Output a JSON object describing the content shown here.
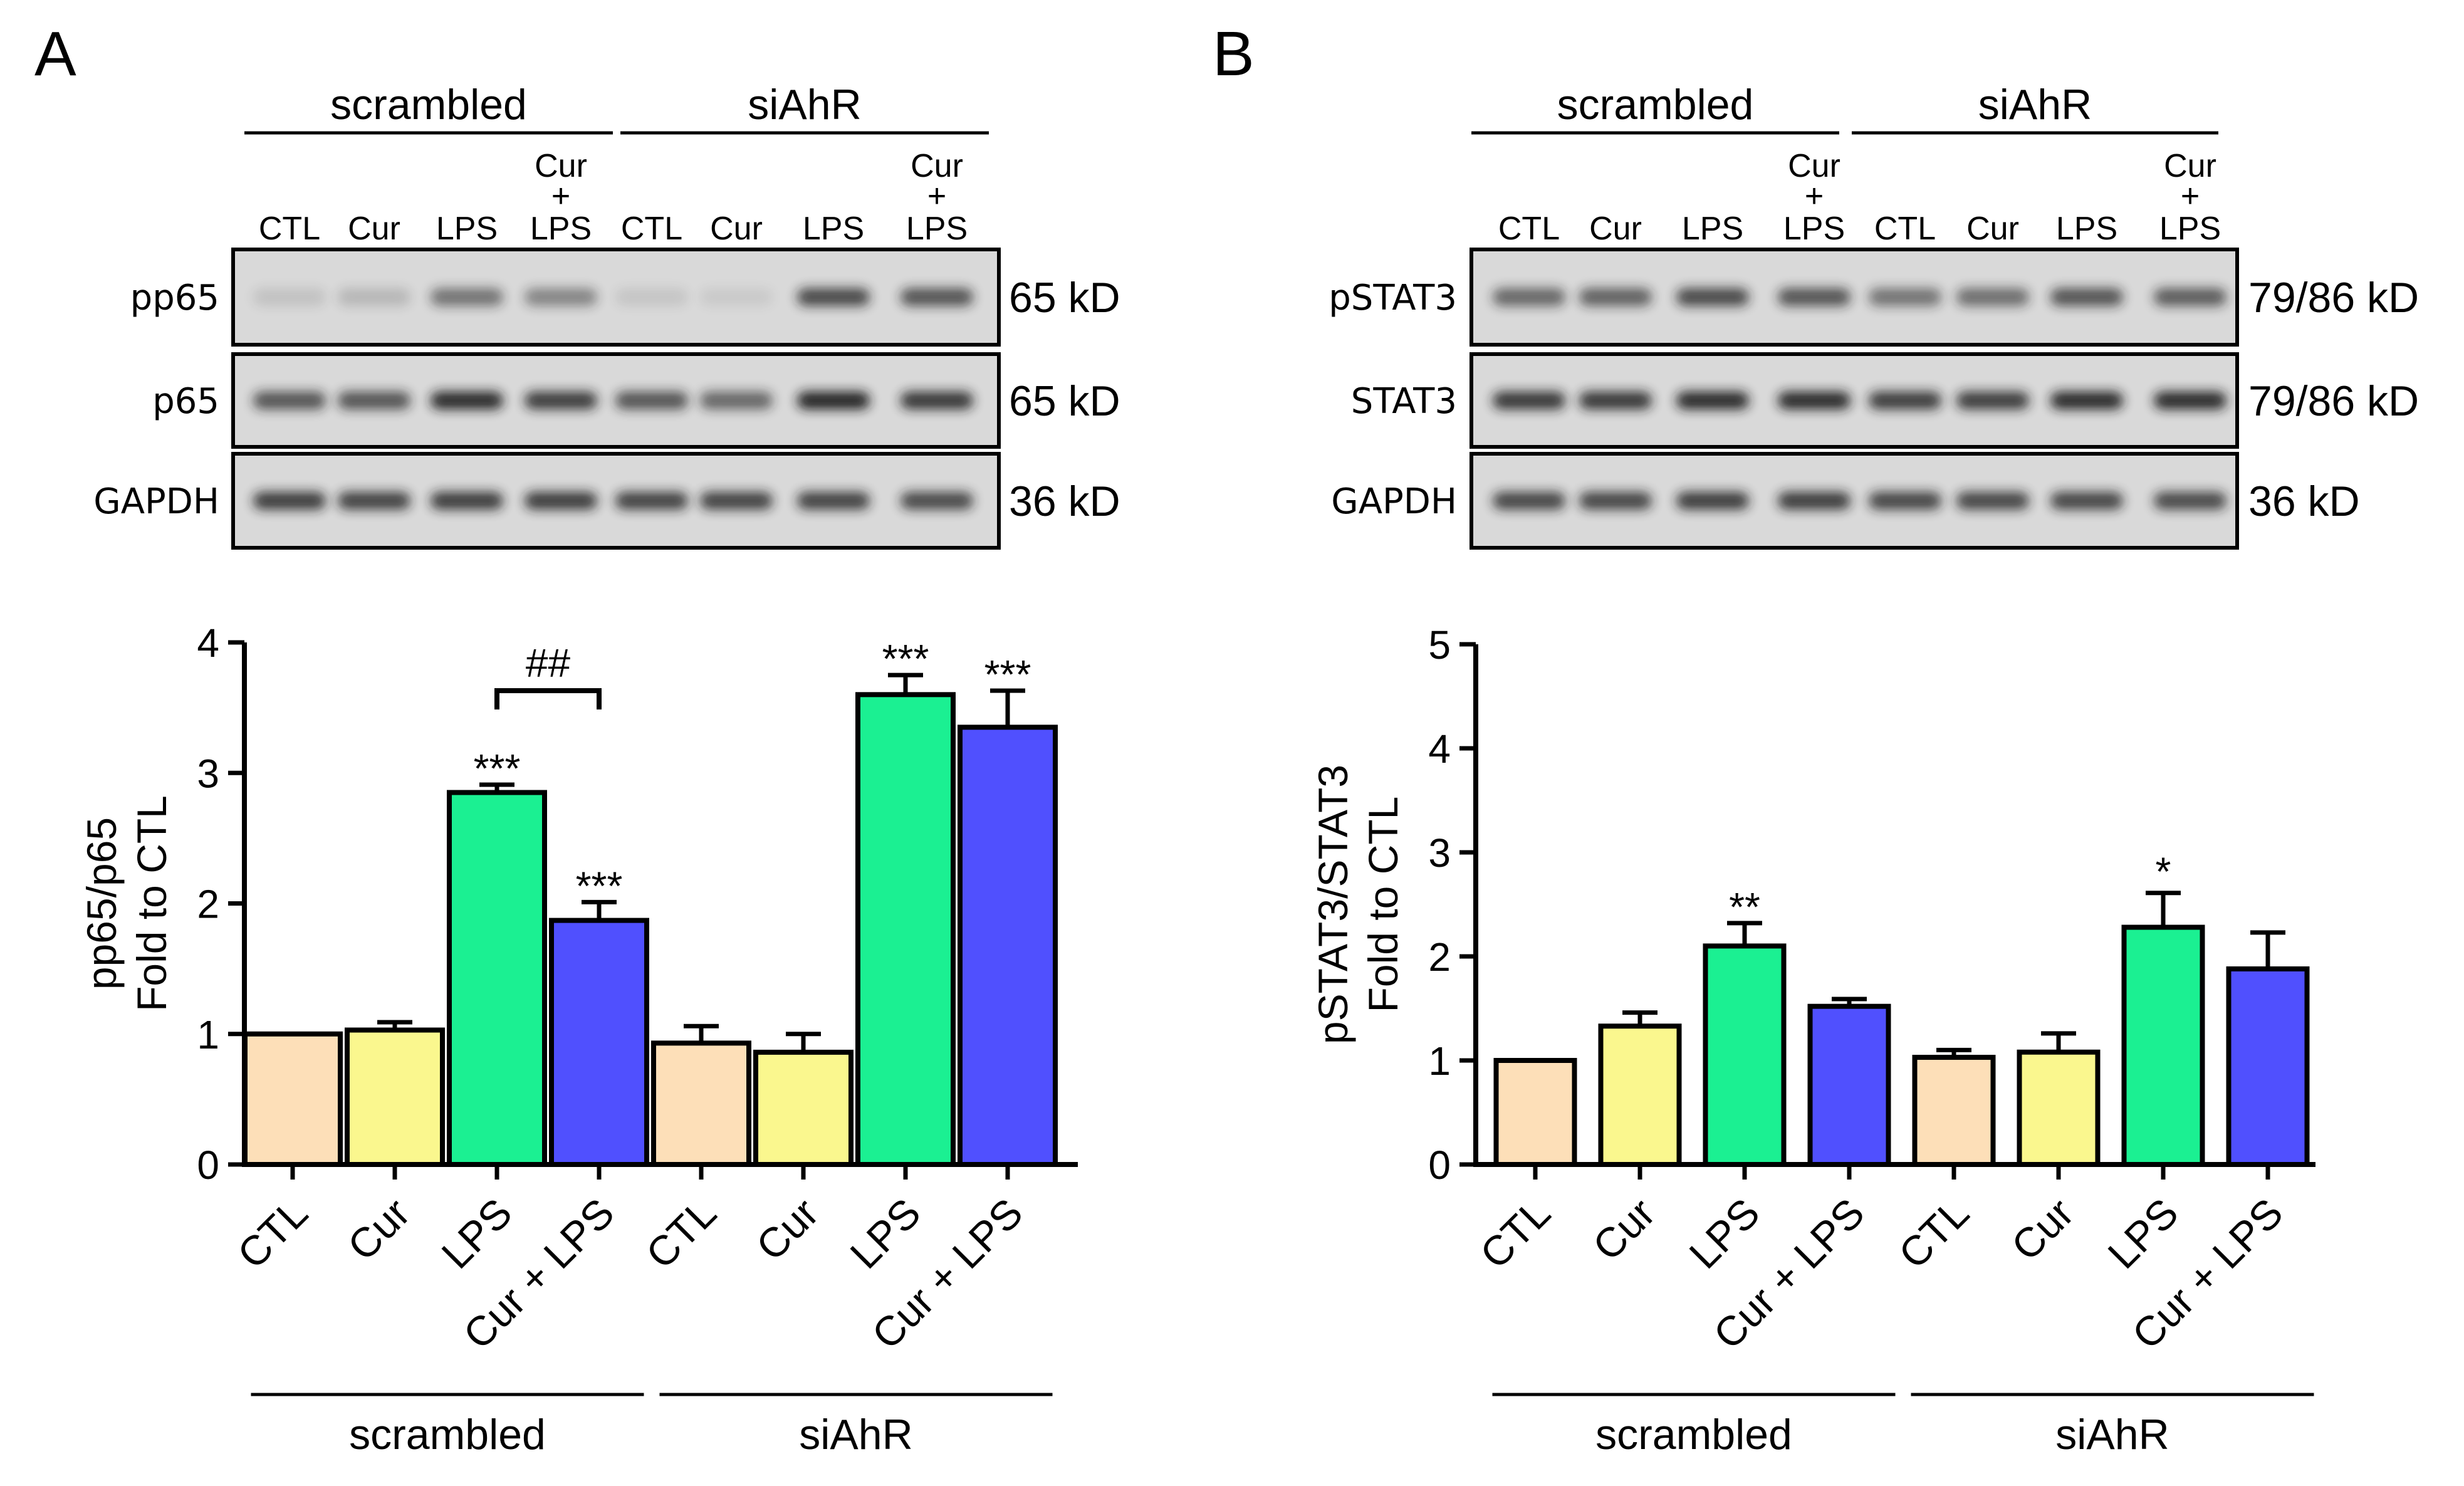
{
  "panels": [
    {
      "letter": "A",
      "blot": {
        "groups": [
          "scrambled",
          "siAhR"
        ],
        "lane_labels": [
          "CTL",
          "Cur",
          "LPS",
          "CTL",
          "Cur",
          "LPS"
        ],
        "combo_label": {
          "top": "Cur",
          "mid": "+",
          "bottom": "LPS"
        },
        "rows": [
          {
            "label": "pp65",
            "kd": "65 kD",
            "intensities": [
              0.12,
              0.18,
              0.55,
              0.45,
              0.1,
              0.08,
              0.78,
              0.72
            ]
          },
          {
            "label": "p65",
            "kd": "65 kD",
            "intensities": [
              0.72,
              0.72,
              0.95,
              0.85,
              0.72,
              0.62,
              0.98,
              0.88
            ]
          },
          {
            "label": "GAPDH",
            "kd": "36 kD",
            "intensities": [
              0.85,
              0.82,
              0.85,
              0.85,
              0.82,
              0.82,
              0.82,
              0.78
            ]
          }
        ]
      }
    },
    {
      "letter": "B",
      "blot": {
        "groups": [
          "scrambled",
          "siAhR"
        ],
        "lane_labels": [
          "CTL",
          "Cur",
          "LPS",
          "CTL",
          "Cur",
          "LPS"
        ],
        "combo_label": {
          "top": "Cur",
          "mid": "+",
          "bottom": "LPS"
        },
        "rows": [
          {
            "label": "pSTAT3",
            "kd": "79/86 kD",
            "intensities": [
              0.62,
              0.65,
              0.78,
              0.72,
              0.55,
              0.58,
              0.72,
              0.68
            ]
          },
          {
            "label": "STAT3",
            "kd": "79/86 kD",
            "intensities": [
              0.88,
              0.88,
              0.95,
              0.95,
              0.85,
              0.85,
              0.95,
              0.95
            ]
          },
          {
            "label": "GAPDH",
            "kd": "36 kD",
            "intensities": [
              0.8,
              0.8,
              0.85,
              0.85,
              0.8,
              0.8,
              0.8,
              0.78
            ]
          }
        ]
      }
    }
  ],
  "chart_data": [
    {
      "type": "bar",
      "panel": "A",
      "ylabel": "pp65/p65",
      "ylabel2": "Fold to CTL",
      "ylim": [
        0,
        4
      ],
      "yticks": [
        0,
        1,
        2,
        3,
        4
      ],
      "categories": [
        "CTL",
        "Cur",
        "LPS",
        "Cur + LPS",
        "CTL",
        "Cur",
        "LPS",
        "Cur + LPS"
      ],
      "values": [
        1.0,
        1.03,
        2.85,
        1.87,
        0.93,
        0.86,
        3.6,
        3.35
      ],
      "errors": [
        0.0,
        0.06,
        0.06,
        0.14,
        0.13,
        0.14,
        0.15,
        0.28
      ],
      "significance": [
        "",
        "",
        "***",
        "***",
        "",
        "",
        "***",
        "***"
      ],
      "bracket": {
        "from": 2,
        "to": 3,
        "label": "##"
      },
      "groups": [
        {
          "label": "scrambled",
          "start": 0,
          "end": 3
        },
        {
          "label": "siAhR",
          "start": 4,
          "end": 7
        }
      ]
    },
    {
      "type": "bar",
      "panel": "B",
      "ylabel": "pSTAT3/STAT3",
      "ylabel2": "Fold to CTL",
      "ylim": [
        0,
        5
      ],
      "yticks": [
        0,
        1,
        2,
        3,
        4,
        5
      ],
      "categories": [
        "CTL",
        "Cur",
        "LPS",
        "Cur + LPS",
        "CTL",
        "Cur",
        "LPS",
        "Cur + LPS"
      ],
      "values": [
        1.0,
        1.33,
        2.1,
        1.52,
        1.03,
        1.08,
        2.28,
        1.88
      ],
      "errors": [
        0.0,
        0.13,
        0.22,
        0.07,
        0.07,
        0.18,
        0.33,
        0.35
      ],
      "significance": [
        "",
        "",
        "**",
        "",
        "",
        "",
        "*",
        ""
      ],
      "groups": [
        {
          "label": "scrambled",
          "start": 0,
          "end": 3
        },
        {
          "label": "siAhR",
          "start": 4,
          "end": 7
        }
      ]
    }
  ],
  "colors": {
    "bars": [
      "#FDDFB8",
      "#FAF78E",
      "#1BF092",
      "#5050FE",
      "#FDDFB8",
      "#FAF78E",
      "#1BF092",
      "#5050FE"
    ],
    "ink": "#000000",
    "blot_bg": "#d9d9d9",
    "band": "#1a1a1a"
  }
}
